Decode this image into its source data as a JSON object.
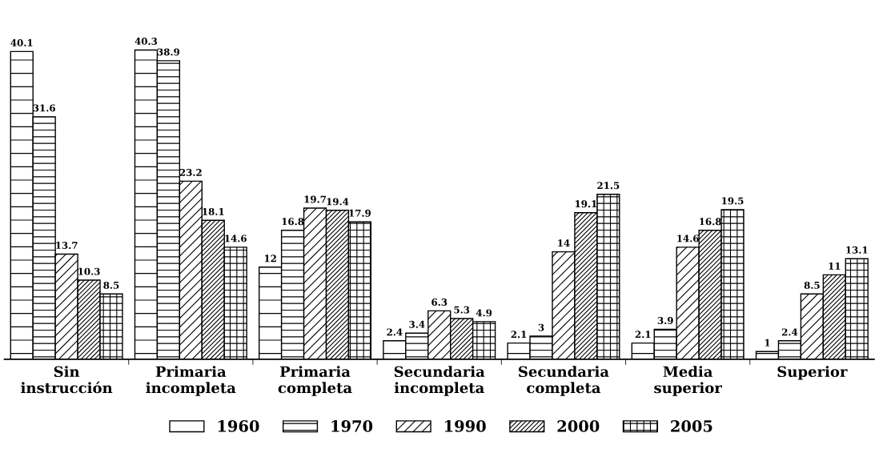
{
  "chart_data": {
    "type": "bar",
    "categories": [
      "Sin\ninstrucción",
      "Primaria\nincompleta",
      "Primaria\ncompleta",
      "Secundaria\nincompleta",
      "Secundaria\ncompleta",
      "Media\nsuperior",
      "Superior"
    ],
    "series": [
      {
        "name": "1960",
        "values": [
          40.1,
          40.3,
          12,
          2.4,
          2.1,
          2.1,
          1
        ]
      },
      {
        "name": "1970",
        "values": [
          31.6,
          38.9,
          16.8,
          3.4,
          3,
          3.9,
          2.4
        ]
      },
      {
        "name": "1990",
        "values": [
          13.7,
          23.2,
          19.7,
          6.3,
          14,
          14.6,
          8.5
        ]
      },
      {
        "name": "2000",
        "values": [
          10.3,
          18.1,
          19.4,
          5.3,
          19.1,
          16.8,
          11
        ]
      },
      {
        "name": "2005",
        "values": [
          8.5,
          14.6,
          17.9,
          4.9,
          21.5,
          19.5,
          13.1
        ]
      }
    ],
    "data_labels": true,
    "legend": "bottom",
    "grid": false
  }
}
